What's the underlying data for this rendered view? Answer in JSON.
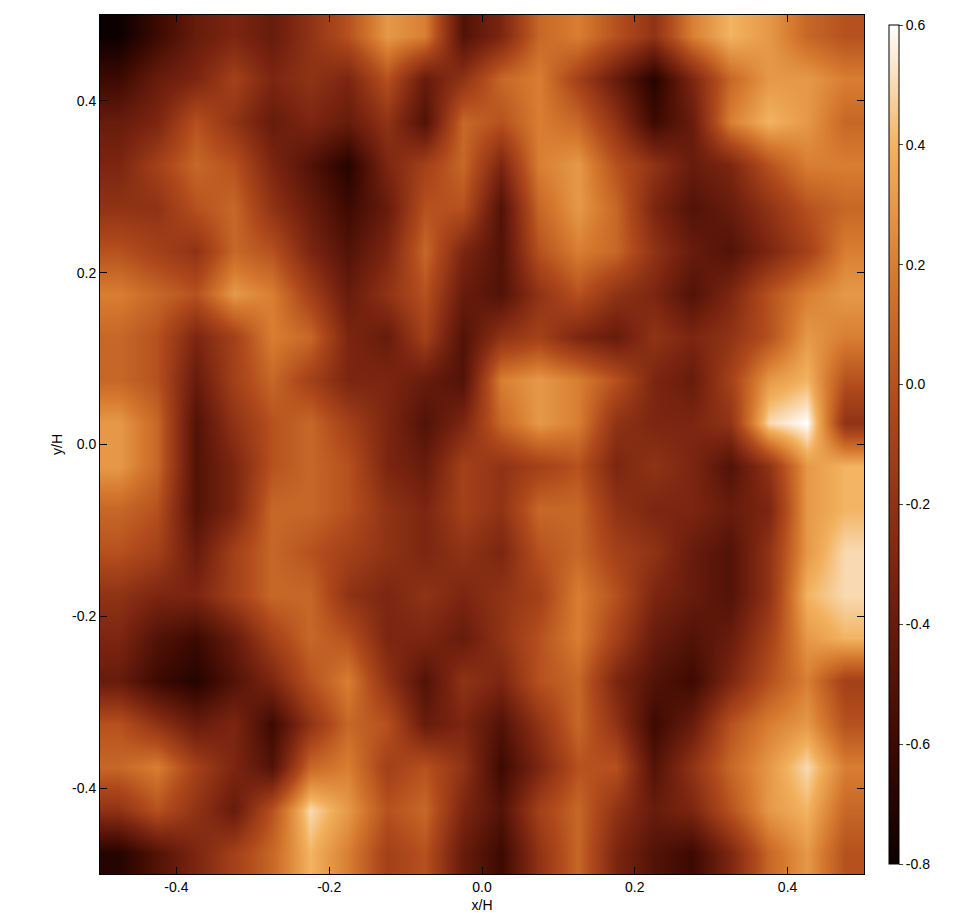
{
  "chart_data": {
    "type": "heatmap",
    "x_label": "x/H",
    "y_label": "y/H",
    "x": [
      -0.475,
      -0.425,
      -0.375,
      -0.325,
      -0.275,
      -0.225,
      -0.175,
      -0.125,
      -0.075,
      -0.025,
      0.025,
      0.075,
      0.125,
      0.175,
      0.225,
      0.275,
      0.325,
      0.375,
      0.425,
      0.475
    ],
    "y": [
      -0.475,
      -0.425,
      -0.375,
      -0.325,
      -0.275,
      -0.225,
      -0.175,
      -0.125,
      -0.075,
      -0.025,
      0.025,
      0.075,
      0.125,
      0.175,
      0.225,
      0.275,
      0.325,
      0.375,
      0.425,
      0.475
    ],
    "cells": [
      [
        -0.7,
        -0.5,
        -0.3,
        -0.1,
        0.1,
        0.4,
        0.2,
        -0.1,
        0.0,
        -0.4,
        -0.6,
        -0.2,
        0.1,
        -0.3,
        -0.5,
        -0.6,
        -0.3,
        0.1,
        0.3,
        0.0
      ],
      [
        -0.2,
        0.0,
        -0.2,
        -0.4,
        0.0,
        0.5,
        0.3,
        0.0,
        0.1,
        -0.3,
        -0.5,
        -0.1,
        0.1,
        -0.2,
        -0.4,
        -0.3,
        0.0,
        0.3,
        0.4,
        0.1
      ],
      [
        0.1,
        0.2,
        -0.1,
        -0.3,
        -0.5,
        0.1,
        0.2,
        -0.1,
        0.0,
        -0.2,
        -0.6,
        -0.3,
        0.0,
        0.0,
        -0.5,
        -0.2,
        0.1,
        0.3,
        0.5,
        0.2
      ],
      [
        0.0,
        -0.2,
        -0.4,
        -0.3,
        -0.6,
        -0.2,
        0.1,
        0.0,
        -0.4,
        -0.3,
        -0.5,
        -0.2,
        0.1,
        -0.2,
        -0.6,
        -0.4,
        0.0,
        0.2,
        0.3,
        0.0
      ],
      [
        -0.4,
        -0.6,
        -0.7,
        -0.5,
        -0.3,
        0.0,
        0.2,
        -0.2,
        -0.5,
        -0.2,
        -0.3,
        0.0,
        0.1,
        -0.3,
        -0.5,
        -0.6,
        -0.3,
        0.0,
        0.2,
        -0.1
      ],
      [
        -0.3,
        -0.5,
        -0.6,
        -0.4,
        -0.1,
        0.1,
        0.0,
        -0.3,
        -0.3,
        -0.4,
        -0.2,
        0.0,
        0.2,
        -0.1,
        -0.4,
        -0.5,
        -0.4,
        -0.1,
        0.3,
        0.4
      ],
      [
        -0.2,
        -0.3,
        -0.3,
        -0.1,
        0.1,
        0.1,
        -0.2,
        -0.3,
        -0.2,
        -0.3,
        -0.2,
        -0.1,
        0.2,
        0.0,
        -0.3,
        -0.4,
        -0.5,
        -0.2,
        0.4,
        0.5
      ],
      [
        0.0,
        -0.1,
        -0.4,
        -0.1,
        0.1,
        0.0,
        -0.1,
        -0.2,
        -0.3,
        -0.2,
        -0.3,
        0.0,
        0.1,
        -0.1,
        -0.2,
        -0.4,
        -0.5,
        -0.2,
        0.3,
        0.5
      ],
      [
        0.1,
        0.0,
        -0.5,
        -0.3,
        0.1,
        0.1,
        0.0,
        -0.2,
        -0.3,
        -0.1,
        -0.2,
        0.1,
        0.1,
        -0.2,
        -0.3,
        -0.3,
        -0.4,
        -0.3,
        0.3,
        0.4
      ],
      [
        0.3,
        0.1,
        -0.5,
        -0.3,
        0.0,
        0.1,
        0.0,
        -0.3,
        -0.4,
        -0.1,
        -0.2,
        -0.1,
        0.0,
        -0.3,
        -0.2,
        -0.3,
        -0.5,
        -0.2,
        0.3,
        0.4
      ],
      [
        0.3,
        0.1,
        -0.5,
        -0.2,
        0.0,
        0.1,
        -0.1,
        -0.3,
        -0.5,
        -0.3,
        0.1,
        0.3,
        0.2,
        -0.2,
        -0.3,
        -0.3,
        -0.2,
        0.5,
        0.6,
        -0.2
      ],
      [
        0.1,
        0.0,
        -0.4,
        -0.1,
        0.1,
        -0.1,
        -0.3,
        -0.3,
        -0.4,
        -0.5,
        0.2,
        0.3,
        0.2,
        0.0,
        -0.3,
        -0.4,
        -0.1,
        0.3,
        0.4,
        0.0
      ],
      [
        0.1,
        0.0,
        -0.3,
        -0.1,
        0.2,
        0.1,
        -0.3,
        -0.4,
        -0.1,
        -0.5,
        -0.2,
        -0.1,
        -0.3,
        -0.4,
        -0.2,
        -0.3,
        -0.2,
        0.0,
        0.3,
        0.2
      ],
      [
        0.2,
        0.1,
        0.0,
        0.3,
        0.2,
        -0.1,
        -0.4,
        -0.2,
        0.0,
        -0.4,
        -0.5,
        -0.2,
        0.0,
        -0.2,
        -0.3,
        -0.5,
        -0.3,
        0.0,
        0.2,
        0.3
      ],
      [
        0.0,
        -0.1,
        -0.2,
        0.1,
        0.0,
        -0.3,
        -0.5,
        -0.3,
        0.1,
        -0.3,
        -0.5,
        0.0,
        0.2,
        0.1,
        -0.2,
        -0.4,
        -0.5,
        -0.3,
        -0.1,
        0.2
      ],
      [
        -0.2,
        -0.2,
        0.0,
        0.1,
        -0.2,
        -0.4,
        -0.6,
        -0.4,
        0.0,
        0.0,
        -0.5,
        0.1,
        0.3,
        0.1,
        -0.3,
        -0.5,
        -0.4,
        -0.2,
        0.0,
        0.1
      ],
      [
        -0.3,
        -0.1,
        0.1,
        0.0,
        -0.3,
        -0.5,
        -0.7,
        -0.3,
        -0.1,
        0.1,
        -0.3,
        0.2,
        0.3,
        0.0,
        -0.2,
        -0.4,
        -0.3,
        0.0,
        0.2,
        0.2
      ],
      [
        -0.4,
        -0.3,
        0.0,
        -0.2,
        -0.4,
        -0.3,
        -0.4,
        -0.2,
        -0.5,
        0.1,
        0.0,
        0.2,
        0.1,
        -0.2,
        -0.6,
        -0.4,
        0.2,
        0.4,
        0.3,
        0.1
      ],
      [
        -0.6,
        -0.4,
        -0.3,
        -0.1,
        -0.3,
        -0.2,
        -0.3,
        0.0,
        -0.4,
        -0.2,
        0.1,
        0.2,
        -0.1,
        -0.4,
        -0.7,
        -0.3,
        0.1,
        0.3,
        0.3,
        0.2
      ],
      [
        -0.8,
        -0.6,
        -0.4,
        -0.3,
        -0.4,
        -0.2,
        0.0,
        0.3,
        0.2,
        -0.5,
        -0.3,
        0.1,
        0.2,
        0.0,
        -0.2,
        0.2,
        0.4,
        0.3,
        0.1,
        0.0
      ]
    ],
    "xlim": [
      -0.5,
      0.5
    ],
    "ylim": [
      -0.5,
      0.5
    ],
    "xticks": [
      -0.4,
      -0.2,
      {
        "value": 0,
        "label": "0.0"
      },
      0.2,
      0.4
    ],
    "yticks": [
      -0.4,
      -0.2,
      {
        "value": 0,
        "label": "0.0"
      },
      0.2,
      0.4
    ],
    "colorbar_range": [
      -0.8,
      0.6
    ],
    "colorbar_ticks": [
      -0.8,
      -0.6,
      -0.4,
      -0.2,
      {
        "value": 0,
        "label": "0.0"
      },
      0.2,
      0.4,
      0.6
    ],
    "grid": false
  }
}
